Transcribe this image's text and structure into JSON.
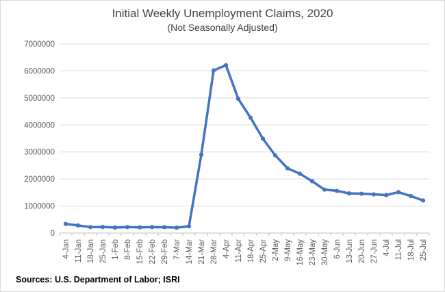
{
  "header": {
    "title": "Initial Weekly Unemployment Claims, 2020",
    "subtitle": "(Not Seasonally Adjusted)"
  },
  "footer": {
    "sources": "Sources: U.S. Department of Labor; ISRI"
  },
  "colors": {
    "line": "#4472C4",
    "marker": "#4472C4",
    "gridline": "#D9D9D9",
    "axis": "#BFBFBF",
    "tick": "#BFBFBF",
    "axis_text": "#595959",
    "title_text": "#404040"
  },
  "chart_data": {
    "type": "line",
    "title": "Initial Weekly Unemployment Claims, 2020",
    "subtitle": "(Not Seasonally Adjusted)",
    "xlabel": "",
    "ylabel": "",
    "ylim": [
      0,
      7000000
    ],
    "ytick_interval": 1000000,
    "yticks": [
      0,
      1000000,
      2000000,
      3000000,
      4000000,
      5000000,
      6000000,
      7000000
    ],
    "grid": true,
    "legend": false,
    "x_labels_rotated_90": true,
    "categories": [
      "4-Jan",
      "11-Jan",
      "18-Jan",
      "25-Jan",
      "1-Feb",
      "8-Feb",
      "15-Feb",
      "22-Feb",
      "29-Feb",
      "7-Mar",
      "14-Mar",
      "21-Mar",
      "28-Mar",
      "4-Apr",
      "11-Apr",
      "18-Apr",
      "25-Apr",
      "2-May",
      "9-May",
      "16-May",
      "23-May",
      "30-May",
      "6-Jun",
      "13-Jun",
      "20-Jun",
      "27-Jun",
      "4-Jul",
      "11-Jul",
      "18-Jul",
      "25-Jul"
    ],
    "values": [
      337000,
      282000,
      220000,
      225000,
      202000,
      222000,
      210000,
      219000,
      217000,
      199000,
      251000,
      2898000,
      6016000,
      6211000,
      4966000,
      4267000,
      3491000,
      2875000,
      2397000,
      2196000,
      1916000,
      1606000,
      1562000,
      1467000,
      1457000,
      1432000,
      1404000,
      1513000,
      1370000,
      1205000
    ],
    "series_name": "Initial weekly unemployment claims"
  }
}
